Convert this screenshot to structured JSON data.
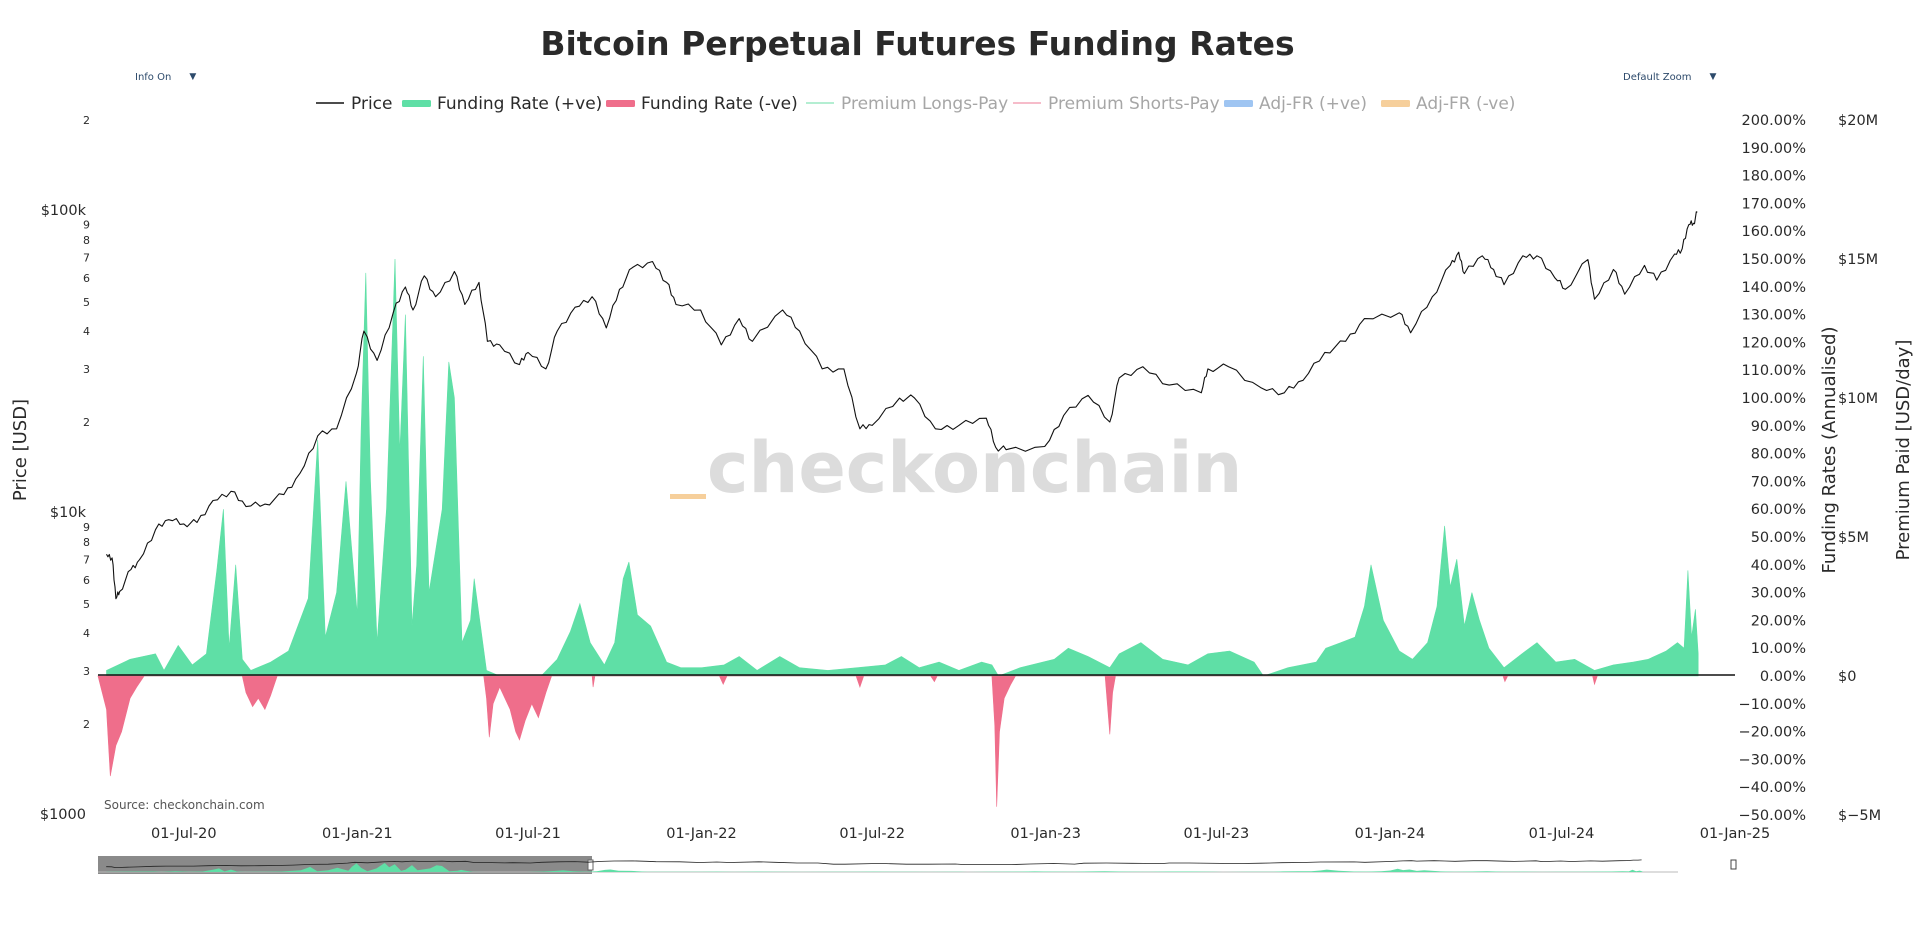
{
  "colors": {
    "price": "#111111",
    "fr_pos": "#5fdfa6",
    "fr_neg": "#ef6e8b",
    "prem_long": "#9be8c4",
    "prem_short": "#f4a6b8",
    "adj_pos": "#9fc5f2",
    "adj_neg": "#f6cf9b",
    "grey_text": "#a6a6a6",
    "watermark_accent": "#f6cf9b"
  },
  "controls": {
    "info_label": "Info On",
    "zoom_label": "Default Zoom",
    "caret": "▼"
  },
  "chart_data": {
    "type": "line+area",
    "title": "Bitcoin Perpetual Futures Funding Rates",
    "source": "Source: checkonchain.com",
    "watermark": "checkonchain",
    "legend": [
      {
        "name": "Price",
        "style": "line",
        "active": true
      },
      {
        "name": "Funding Rate (+ve)",
        "style": "box",
        "active": true
      },
      {
        "name": "Funding Rate (-ve)",
        "style": "box",
        "active": true
      },
      {
        "name": "Premium Longs-Pay",
        "style": "line",
        "active": false
      },
      {
        "name": "Premium Shorts-Pay",
        "style": "line",
        "active": false
      },
      {
        "name": "Adj-FR (+ve)",
        "style": "box",
        "active": false
      },
      {
        "name": "Adj-FR (-ve)",
        "style": "box",
        "active": false
      }
    ],
    "x_ticks": [
      "01-Jul-20",
      "01-Jan-21",
      "01-Jul-21",
      "01-Jan-22",
      "01-Jul-22",
      "01-Jan-23",
      "01-Jul-23",
      "01-Jan-24",
      "01-Jul-24",
      "01-Jan-25"
    ],
    "x_range": [
      "2020-04-01",
      "2025-01-01"
    ],
    "y_price": {
      "label": "Price [USD]",
      "scale": "log",
      "range": [
        1000,
        200000
      ],
      "ticks": [
        {
          "v": 1000,
          "t": "$1000"
        },
        {
          "v": 2000,
          "t": "2"
        },
        {
          "v": 3000,
          "t": "3"
        },
        {
          "v": 4000,
          "t": "4"
        },
        {
          "v": 5000,
          "t": "5"
        },
        {
          "v": 6000,
          "t": "6"
        },
        {
          "v": 7000,
          "t": "7"
        },
        {
          "v": 8000,
          "t": "8"
        },
        {
          "v": 9000,
          "t": "9"
        },
        {
          "v": 10000,
          "t": "$10k"
        },
        {
          "v": 20000,
          "t": "2"
        },
        {
          "v": 30000,
          "t": "3"
        },
        {
          "v": 40000,
          "t": "4"
        },
        {
          "v": 50000,
          "t": "5"
        },
        {
          "v": 60000,
          "t": "6"
        },
        {
          "v": 70000,
          "t": "7"
        },
        {
          "v": 80000,
          "t": "8"
        },
        {
          "v": 90000,
          "t": "9"
        },
        {
          "v": 100000,
          "t": "$100k"
        },
        {
          "v": 200000,
          "t": "2"
        }
      ]
    },
    "y_funding": {
      "label": "Funding Rates (Annualised)",
      "range": [
        -50,
        200
      ],
      "ticks": [
        "−50.00%",
        "−40.00%",
        "−30.00%",
        "−20.00%",
        "−10.00%",
        "0.00%",
        "10.00%",
        "20.00%",
        "30.00%",
        "40.00%",
        "50.00%",
        "60.00%",
        "70.00%",
        "80.00%",
        "90.00%",
        "100.00%",
        "110.00%",
        "120.00%",
        "130.00%",
        "140.00%",
        "150.00%",
        "160.00%",
        "170.00%",
        "180.00%",
        "190.00%",
        "200.00%"
      ]
    },
    "y_premium": {
      "label": "Premium Paid [USD/day]",
      "range": [
        -5000000,
        20000000
      ],
      "ticks": [
        {
          "v": -5000000,
          "t": "$−5M"
        },
        {
          "v": 0,
          "t": "$0"
        },
        {
          "v": 5000000,
          "t": "$5M"
        },
        {
          "v": 10000000,
          "t": "$10M"
        },
        {
          "v": 15000000,
          "t": "$15M"
        },
        {
          "v": 20000000,
          "t": "$20M"
        }
      ]
    },
    "price_series": [
      [
        "2020-04-10",
        7300
      ],
      [
        "2020-04-16",
        7100
      ],
      [
        "2020-04-20",
        5200
      ],
      [
        "2020-04-24",
        5500
      ],
      [
        "2020-05-06",
        6500
      ],
      [
        "2020-05-15",
        7000
      ],
      [
        "2020-06-01",
        8800
      ],
      [
        "2020-06-15",
        9500
      ],
      [
        "2020-07-01",
        9200
      ],
      [
        "2020-07-15",
        9300
      ],
      [
        "2020-08-01",
        11000
      ],
      [
        "2020-08-20",
        11800
      ],
      [
        "2020-09-05",
        10500
      ],
      [
        "2020-09-25",
        10700
      ],
      [
        "2020-10-15",
        11500
      ],
      [
        "2020-11-01",
        13500
      ],
      [
        "2020-11-20",
        18000
      ],
      [
        "2020-12-10",
        19000
      ],
      [
        "2020-12-31",
        29000
      ],
      [
        "2021-01-08",
        40000
      ],
      [
        "2021-01-22",
        32000
      ],
      [
        "2021-02-08",
        46000
      ],
      [
        "2021-02-21",
        56000
      ],
      [
        "2021-03-01",
        47000
      ],
      [
        "2021-03-13",
        61000
      ],
      [
        "2021-03-25",
        52000
      ],
      [
        "2021-04-14",
        63000
      ],
      [
        "2021-04-25",
        49000
      ],
      [
        "2021-05-10",
        58000
      ],
      [
        "2021-05-19",
        37000
      ],
      [
        "2021-06-01",
        36000
      ],
      [
        "2021-06-22",
        31000
      ],
      [
        "2021-07-01",
        34000
      ],
      [
        "2021-07-20",
        30000
      ],
      [
        "2021-08-01",
        40000
      ],
      [
        "2021-08-20",
        48000
      ],
      [
        "2021-09-07",
        52000
      ],
      [
        "2021-09-22",
        41000
      ],
      [
        "2021-10-06",
        55000
      ],
      [
        "2021-10-20",
        65000
      ],
      [
        "2021-11-10",
        68000
      ],
      [
        "2021-11-25",
        58000
      ],
      [
        "2021-12-05",
        49000
      ],
      [
        "2021-12-31",
        47000
      ],
      [
        "2022-01-22",
        36000
      ],
      [
        "2022-02-10",
        44000
      ],
      [
        "2022-02-24",
        37000
      ],
      [
        "2022-03-28",
        47000
      ],
      [
        "2022-04-15",
        40000
      ],
      [
        "2022-05-09",
        30000
      ],
      [
        "2022-06-01",
        30000
      ],
      [
        "2022-06-18",
        19000
      ],
      [
        "2022-07-01",
        19500
      ],
      [
        "2022-07-30",
        24000
      ],
      [
        "2022-08-15",
        24000
      ],
      [
        "2022-09-06",
        19000
      ],
      [
        "2022-10-01",
        19500
      ],
      [
        "2022-10-30",
        20600
      ],
      [
        "2022-11-09",
        16500
      ],
      [
        "2022-11-20",
        16200
      ],
      [
        "2022-12-31",
        16600
      ],
      [
        "2023-01-20",
        21000
      ],
      [
        "2023-02-15",
        24500
      ],
      [
        "2023-03-10",
        20000
      ],
      [
        "2023-03-20",
        28000
      ],
      [
        "2023-04-14",
        30500
      ],
      [
        "2023-05-12",
        26500
      ],
      [
        "2023-06-15",
        25000
      ],
      [
        "2023-06-22",
        30000
      ],
      [
        "2023-07-14",
        30500
      ],
      [
        "2023-08-17",
        26000
      ],
      [
        "2023-09-11",
        25000
      ],
      [
        "2023-10-01",
        27500
      ],
      [
        "2023-10-24",
        34000
      ],
      [
        "2023-11-15",
        37000
      ],
      [
        "2023-12-05",
        44000
      ],
      [
        "2024-01-11",
        46000
      ],
      [
        "2024-01-23",
        39500
      ],
      [
        "2024-02-15",
        52000
      ],
      [
        "2024-03-05",
        66000
      ],
      [
        "2024-03-14",
        73000
      ],
      [
        "2024-03-20",
        62000
      ],
      [
        "2024-04-08",
        71000
      ],
      [
        "2024-04-20",
        64000
      ],
      [
        "2024-05-01",
        57000
      ],
      [
        "2024-05-21",
        71000
      ],
      [
        "2024-06-05",
        71000
      ],
      [
        "2024-06-24",
        60000
      ],
      [
        "2024-07-05",
        55000
      ],
      [
        "2024-07-29",
        69000
      ],
      [
        "2024-08-05",
        51000
      ],
      [
        "2024-08-25",
        64000
      ],
      [
        "2024-09-06",
        53000
      ],
      [
        "2024-09-27",
        66000
      ],
      [
        "2024-10-10",
        59000
      ],
      [
        "2024-10-29",
        72000
      ],
      [
        "2024-11-06",
        75000
      ],
      [
        "2024-11-13",
        90000
      ],
      [
        "2024-11-18",
        91000
      ],
      [
        "2024-11-22",
        99000
      ]
    ],
    "funding_positive": [
      [
        "2020-04-10",
        2
      ],
      [
        "2020-05-05",
        6
      ],
      [
        "2020-06-01",
        8
      ],
      [
        "2020-06-10",
        2
      ],
      [
        "2020-06-25",
        11
      ],
      [
        "2020-07-10",
        4
      ],
      [
        "2020-07-25",
        8
      ],
      [
        "2020-08-05",
        38
      ],
      [
        "2020-08-12",
        60
      ],
      [
        "2020-08-18",
        10
      ],
      [
        "2020-08-25",
        40
      ],
      [
        "2020-09-01",
        6
      ],
      [
        "2020-09-10",
        2
      ],
      [
        "2020-10-01",
        5
      ],
      [
        "2020-10-20",
        9
      ],
      [
        "2020-11-10",
        28
      ],
      [
        "2020-11-20",
        85
      ],
      [
        "2020-11-28",
        14
      ],
      [
        "2020-12-10",
        30
      ],
      [
        "2020-12-20",
        70
      ],
      [
        "2021-01-01",
        22
      ],
      [
        "2021-01-05",
        88
      ],
      [
        "2021-01-10",
        145
      ],
      [
        "2021-01-15",
        70
      ],
      [
        "2021-01-22",
        12
      ],
      [
        "2021-02-01",
        60
      ],
      [
        "2021-02-10",
        150
      ],
      [
        "2021-02-15",
        80
      ],
      [
        "2021-02-21",
        130
      ],
      [
        "2021-02-28",
        18
      ],
      [
        "2021-03-05",
        40
      ],
      [
        "2021-03-12",
        115
      ],
      [
        "2021-03-18",
        30
      ],
      [
        "2021-04-01",
        60
      ],
      [
        "2021-04-08",
        113
      ],
      [
        "2021-04-14",
        100
      ],
      [
        "2021-04-22",
        12
      ],
      [
        "2021-05-01",
        20
      ],
      [
        "2021-05-05",
        35
      ],
      [
        "2021-05-10",
        22
      ],
      [
        "2021-05-18",
        2
      ],
      [
        "2021-06-01",
        0
      ],
      [
        "2021-06-20",
        0
      ],
      [
        "2021-07-15",
        0
      ],
      [
        "2021-08-01",
        6
      ],
      [
        "2021-08-15",
        16
      ],
      [
        "2021-08-25",
        26
      ],
      [
        "2021-09-05",
        12
      ],
      [
        "2021-09-20",
        4
      ],
      [
        "2021-10-01",
        12
      ],
      [
        "2021-10-10",
        35
      ],
      [
        "2021-10-16",
        41
      ],
      [
        "2021-10-25",
        22
      ],
      [
        "2021-11-08",
        18
      ],
      [
        "2021-11-25",
        5
      ],
      [
        "2021-12-10",
        3
      ],
      [
        "2022-01-01",
        3
      ],
      [
        "2022-01-25",
        4
      ],
      [
        "2022-02-10",
        7
      ],
      [
        "2022-03-01",
        2
      ],
      [
        "2022-03-25",
        7
      ],
      [
        "2022-04-15",
        3
      ],
      [
        "2022-05-15",
        2
      ],
      [
        "2022-06-15",
        3
      ],
      [
        "2022-07-15",
        4
      ],
      [
        "2022-08-01",
        7
      ],
      [
        "2022-08-20",
        3
      ],
      [
        "2022-09-10",
        5
      ],
      [
        "2022-10-01",
        2
      ],
      [
        "2022-10-25",
        5
      ],
      [
        "2022-11-05",
        4
      ],
      [
        "2022-11-12",
        0
      ],
      [
        "2022-12-05",
        3
      ],
      [
        "2023-01-10",
        6
      ],
      [
        "2023-01-25",
        10
      ],
      [
        "2023-02-15",
        7
      ],
      [
        "2023-03-10",
        3
      ],
      [
        "2023-03-20",
        8
      ],
      [
        "2023-04-12",
        12
      ],
      [
        "2023-05-05",
        6
      ],
      [
        "2023-06-01",
        4
      ],
      [
        "2023-06-22",
        8
      ],
      [
        "2023-07-15",
        9
      ],
      [
        "2023-08-10",
        5
      ],
      [
        "2023-08-20",
        0
      ],
      [
        "2023-09-15",
        3
      ],
      [
        "2023-10-15",
        5
      ],
      [
        "2023-10-25",
        10
      ],
      [
        "2023-11-10",
        12
      ],
      [
        "2023-11-25",
        14
      ],
      [
        "2023-12-05",
        25
      ],
      [
        "2023-12-12",
        40
      ],
      [
        "2023-12-25",
        20
      ],
      [
        "2024-01-11",
        9
      ],
      [
        "2024-01-25",
        6
      ],
      [
        "2024-02-10",
        12
      ],
      [
        "2024-02-20",
        25
      ],
      [
        "2024-02-28",
        54
      ],
      [
        "2024-03-05",
        32
      ],
      [
        "2024-03-12",
        42
      ],
      [
        "2024-03-20",
        18
      ],
      [
        "2024-03-28",
        30
      ],
      [
        "2024-04-05",
        20
      ],
      [
        "2024-04-15",
        10
      ],
      [
        "2024-05-01",
        3
      ],
      [
        "2024-05-20",
        8
      ],
      [
        "2024-06-05",
        12
      ],
      [
        "2024-06-25",
        5
      ],
      [
        "2024-07-15",
        6
      ],
      [
        "2024-08-05",
        2
      ],
      [
        "2024-08-25",
        4
      ],
      [
        "2024-09-15",
        5
      ],
      [
        "2024-10-01",
        6
      ],
      [
        "2024-10-20",
        9
      ],
      [
        "2024-11-01",
        12
      ],
      [
        "2024-11-08",
        10
      ],
      [
        "2024-11-12",
        38
      ],
      [
        "2024-11-16",
        14
      ],
      [
        "2024-11-20",
        24
      ],
      [
        "2024-11-23",
        8
      ]
    ],
    "funding_negative": [
      [
        "2020-04-01",
        0
      ],
      [
        "2020-04-10",
        -12
      ],
      [
        "2020-04-14",
        -36
      ],
      [
        "2020-04-20",
        -25
      ],
      [
        "2020-04-26",
        -20
      ],
      [
        "2020-05-05",
        -8
      ],
      [
        "2020-05-12",
        -4
      ],
      [
        "2020-05-20",
        0
      ],
      [
        "2020-09-01",
        0
      ],
      [
        "2020-09-05",
        -6
      ],
      [
        "2020-09-12",
        -11
      ],
      [
        "2020-09-18",
        -8
      ],
      [
        "2020-09-25",
        -12
      ],
      [
        "2020-10-01",
        -7
      ],
      [
        "2020-10-08",
        0
      ],
      [
        "2021-05-15",
        0
      ],
      [
        "2021-05-18",
        -8
      ],
      [
        "2021-05-21",
        -22
      ],
      [
        "2021-05-25",
        -10
      ],
      [
        "2021-06-01",
        -4
      ],
      [
        "2021-06-12",
        -12
      ],
      [
        "2021-06-18",
        -20
      ],
      [
        "2021-06-22",
        -23
      ],
      [
        "2021-06-28",
        -16
      ],
      [
        "2021-07-05",
        -10
      ],
      [
        "2021-07-12",
        -15
      ],
      [
        "2021-07-20",
        -6
      ],
      [
        "2021-07-26",
        0
      ],
      [
        "2021-09-07",
        0
      ],
      [
        "2021-09-08",
        -4
      ],
      [
        "2021-09-10",
        0
      ],
      [
        "2022-01-20",
        0
      ],
      [
        "2022-01-24",
        -3
      ],
      [
        "2022-01-28",
        0
      ],
      [
        "2022-06-14",
        0
      ],
      [
        "2022-06-18",
        -4
      ],
      [
        "2022-06-22",
        0
      ],
      [
        "2022-09-01",
        0
      ],
      [
        "2022-09-05",
        -2
      ],
      [
        "2022-09-08",
        0
      ],
      [
        "2022-11-05",
        0
      ],
      [
        "2022-11-08",
        -18
      ],
      [
        "2022-11-10",
        -47
      ],
      [
        "2022-11-13",
        -20
      ],
      [
        "2022-11-18",
        -8
      ],
      [
        "2022-11-25",
        -3
      ],
      [
        "2022-11-30",
        0
      ],
      [
        "2023-03-05",
        0
      ],
      [
        "2023-03-10",
        -21
      ],
      [
        "2023-03-13",
        -6
      ],
      [
        "2023-03-16",
        0
      ],
      [
        "2024-04-30",
        0
      ],
      [
        "2024-05-02",
        -2
      ],
      [
        "2024-05-05",
        0
      ],
      [
        "2024-08-03",
        0
      ],
      [
        "2024-08-05",
        -3
      ],
      [
        "2024-08-08",
        0
      ]
    ]
  }
}
